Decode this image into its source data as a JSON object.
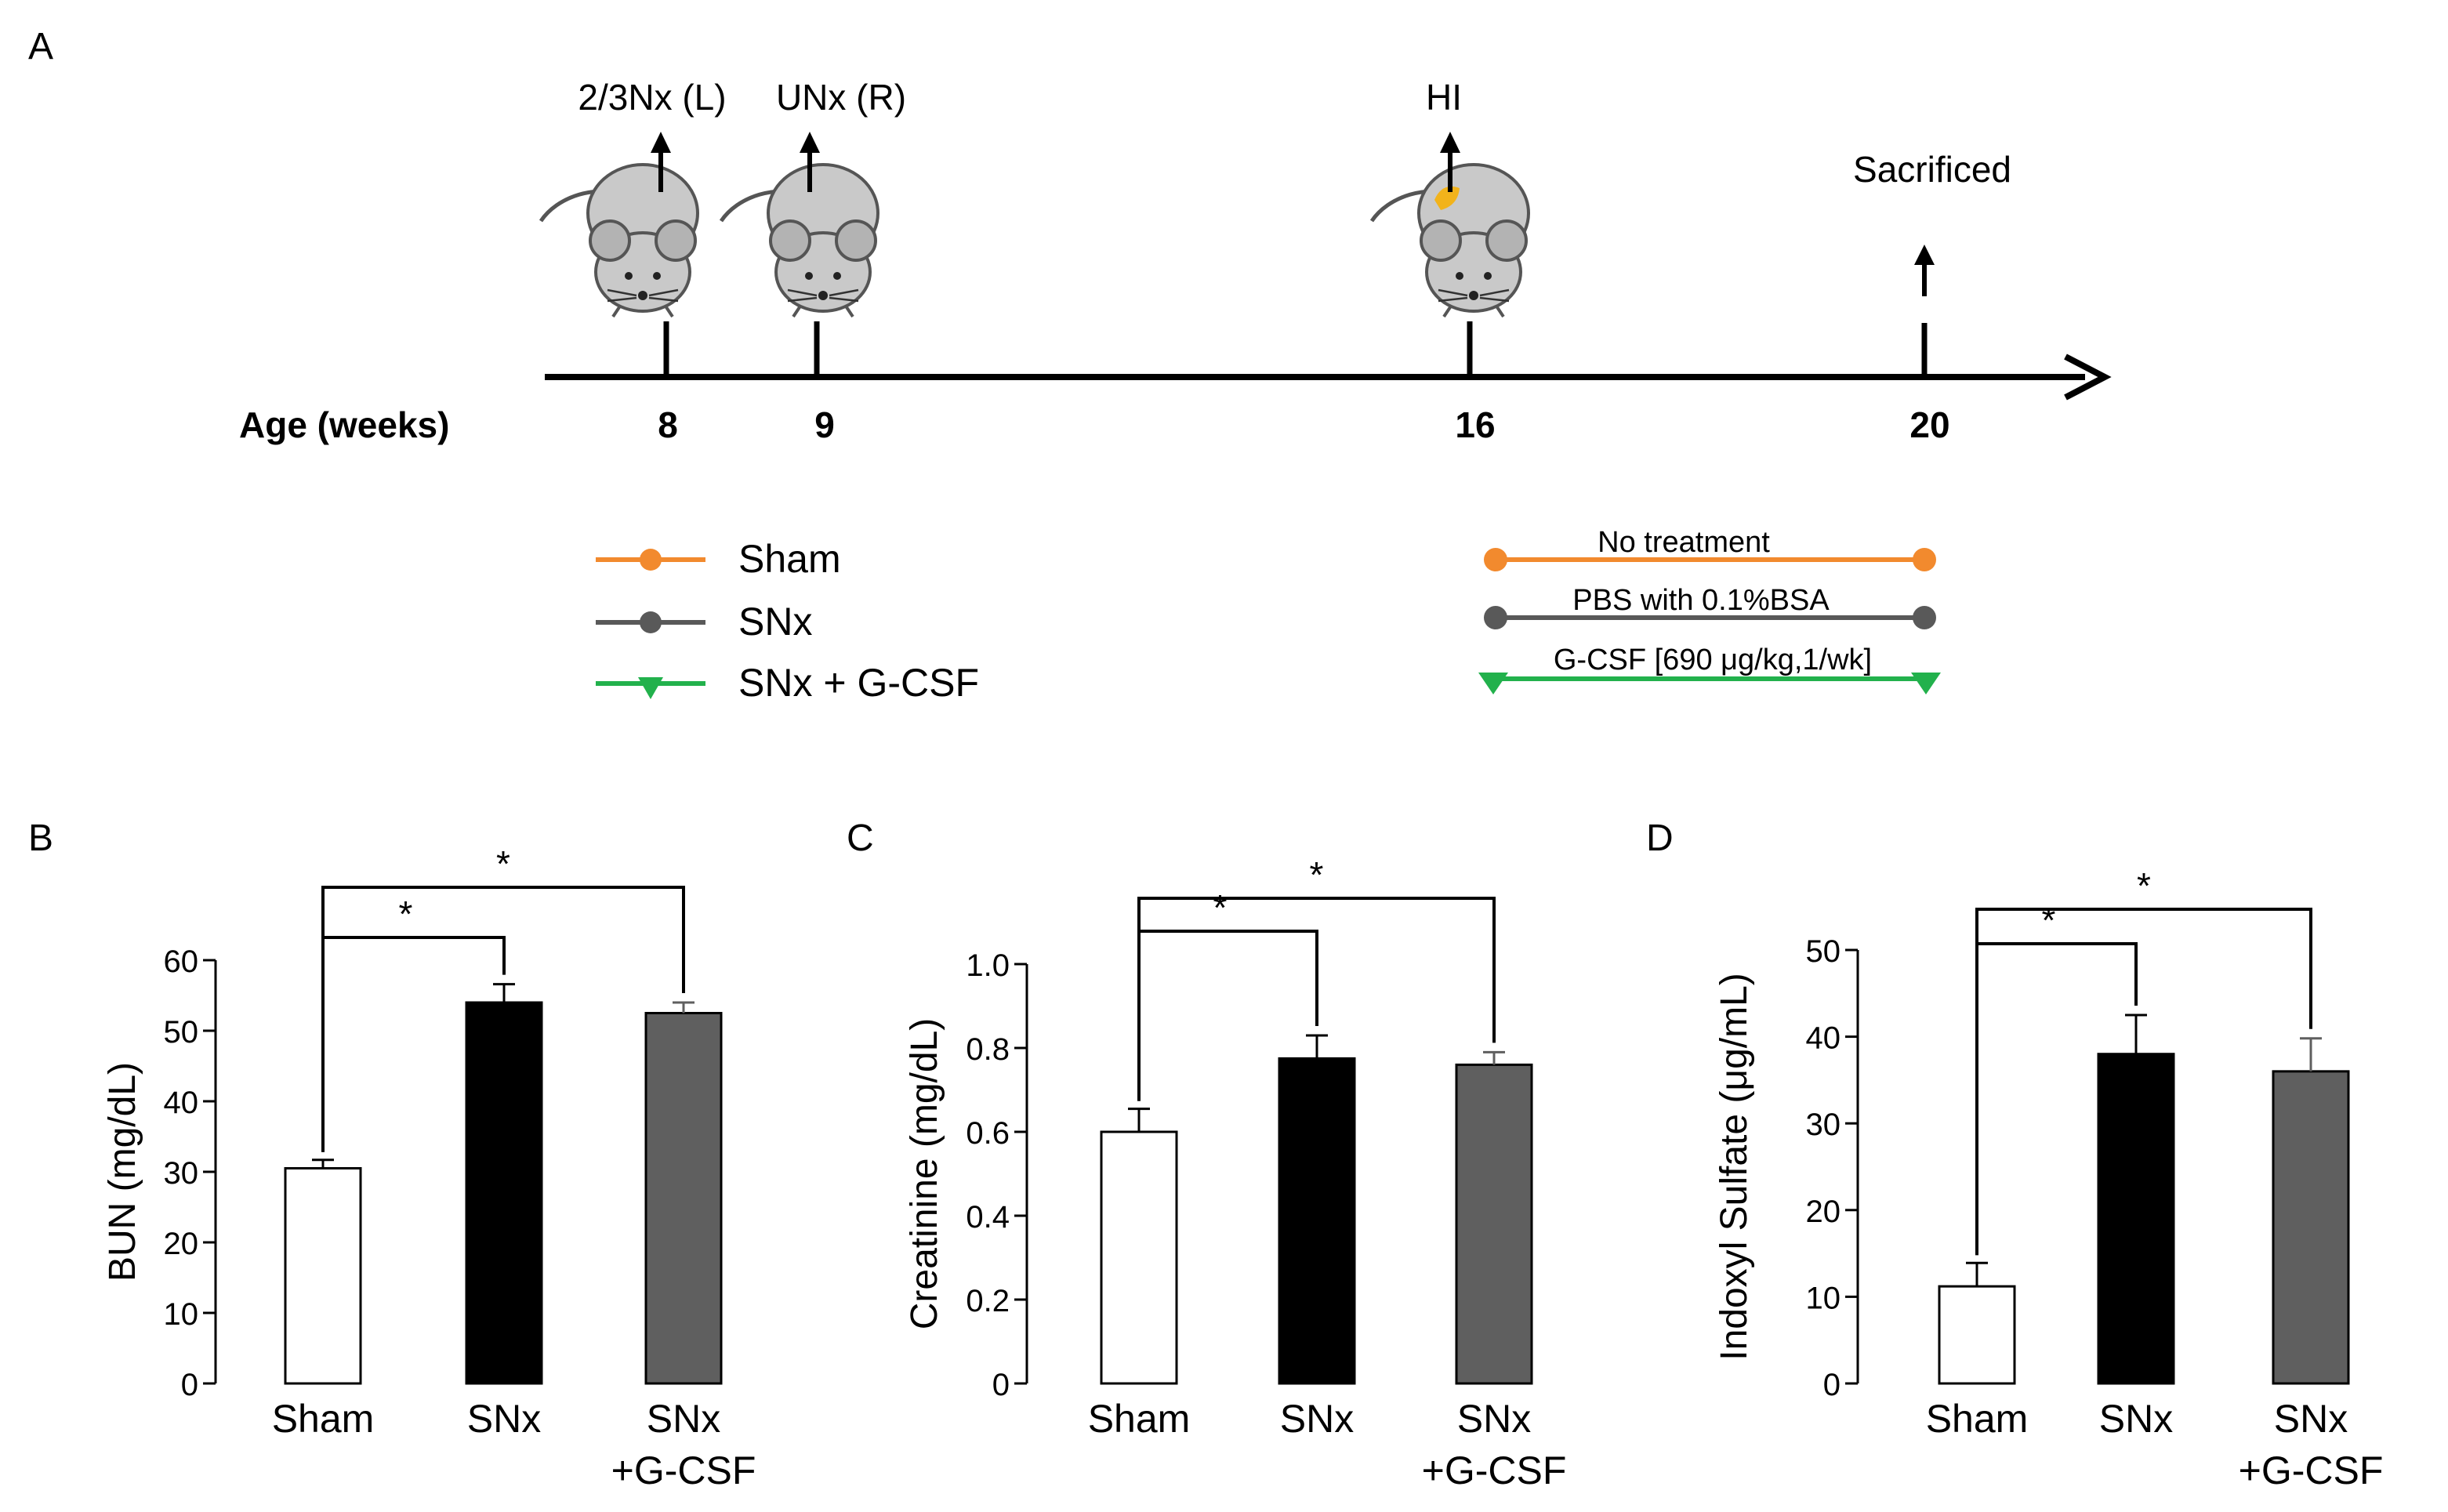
{
  "panel_a": {
    "label": "A",
    "axis_label": "Age (weeks)",
    "timeline_events": [
      {
        "week": "8",
        "annotation": "2/3Nx (L)",
        "mouse": true
      },
      {
        "week": "9",
        "annotation": "UNx (R)",
        "mouse": true
      },
      {
        "week": "16",
        "annotation": "HI",
        "mouse": true
      },
      {
        "week": "20",
        "annotation": "Sacrificed",
        "mouse": false
      }
    ],
    "legend": [
      {
        "name": "Sham",
        "color": "#f28a2e",
        "marker": "circle"
      },
      {
        "name": "SNx",
        "color": "#595959",
        "marker": "circle"
      },
      {
        "name": "SNx + G-CSF",
        "color": "#22b14c",
        "marker": "triangle"
      }
    ],
    "treatments": [
      {
        "label": "No treatment",
        "color": "#f28a2e",
        "marker": "circle"
      },
      {
        "label": "PBS with 0.1%BSA",
        "color": "#595959",
        "marker": "circle"
      },
      {
        "label": "G-CSF [690 μg/kg,1/wk]",
        "color": "#22b14c",
        "marker": "triangle"
      }
    ]
  },
  "chart_data": [
    {
      "panel": "B",
      "type": "bar",
      "categories": [
        "Sham",
        "SNx",
        "SNx\n+G-CSF"
      ],
      "values": [
        30.5,
        54,
        52.5
      ],
      "errors": [
        1.2,
        2.6,
        1.5
      ],
      "bar_colors": [
        "#ffffff",
        "#000000",
        "#5f5f5f"
      ],
      "ylabel": "BUN (mg/dL)",
      "ylim": [
        0,
        60
      ],
      "yticks": [
        "0",
        "10",
        "20",
        "30",
        "40",
        "50",
        "60"
      ],
      "significance": [
        {
          "from": 0,
          "to": 1,
          "label": "*"
        },
        {
          "from": 0,
          "to": 2,
          "label": "*"
        }
      ]
    },
    {
      "panel": "C",
      "type": "bar",
      "categories": [
        "Sham",
        "SNx",
        "SNx\n+G-CSF"
      ],
      "values": [
        0.6,
        0.775,
        0.76
      ],
      "errors": [
        0.055,
        0.055,
        0.03
      ],
      "bar_colors": [
        "#ffffff",
        "#000000",
        "#5f5f5f"
      ],
      "ylabel": "Creatinine (mg/dL)",
      "ylim": [
        0,
        1.0
      ],
      "yticks": [
        "0",
        "0.2",
        "0.4",
        "0.6",
        "0.8",
        "1.0"
      ],
      "significance": [
        {
          "from": 0,
          "to": 1,
          "label": "*"
        },
        {
          "from": 0,
          "to": 2,
          "label": "*"
        }
      ]
    },
    {
      "panel": "D",
      "type": "bar",
      "categories": [
        "Sham",
        "SNx",
        "SNx\n+G-CSF"
      ],
      "values": [
        11.2,
        38,
        36
      ],
      "errors": [
        2.7,
        4.5,
        3.8
      ],
      "bar_colors": [
        "#ffffff",
        "#000000",
        "#5f5f5f"
      ],
      "ylabel": "Indoxyl Sulfate (μg/mL)",
      "ylim": [
        0,
        50
      ],
      "yticks": [
        "0",
        "10",
        "20",
        "30",
        "40",
        "50"
      ],
      "significance": [
        {
          "from": 0,
          "to": 1,
          "label": "*"
        },
        {
          "from": 0,
          "to": 2,
          "label": "*"
        }
      ]
    }
  ]
}
